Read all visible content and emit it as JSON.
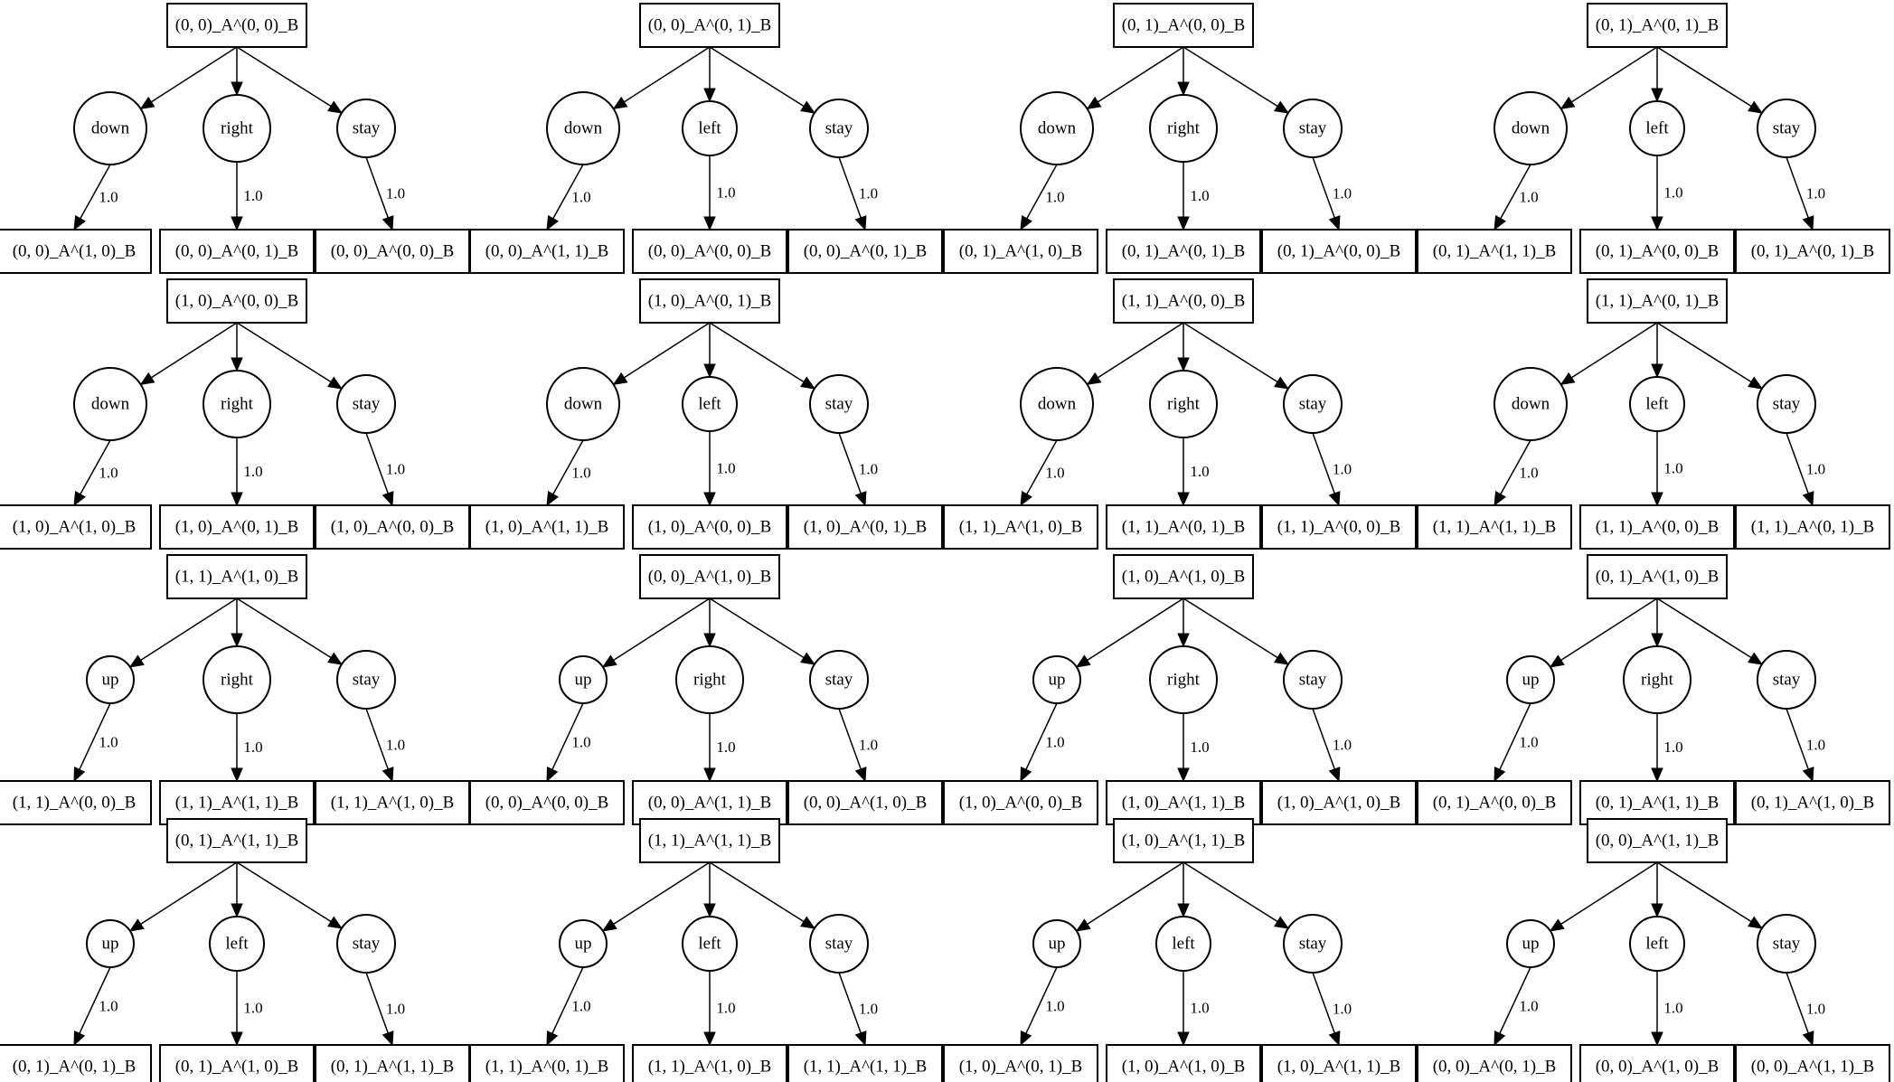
{
  "diagram": {
    "type": "transition-trees",
    "colors": {
      "stroke": "#000000",
      "fill": "#ffffff",
      "text": "#000000"
    },
    "trees": [
      {
        "root": "(0, 0)_A^(0, 0)_B",
        "branches": [
          {
            "action": "down",
            "prob": "1.0",
            "result": "(0, 0)_A^(1, 0)_B"
          },
          {
            "action": "right",
            "prob": "1.0",
            "result": "(0, 0)_A^(0, 1)_B"
          },
          {
            "action": "stay",
            "prob": "1.0",
            "result": "(0, 0)_A^(0, 0)_B"
          }
        ]
      },
      {
        "root": "(0, 0)_A^(0, 1)_B",
        "branches": [
          {
            "action": "down",
            "prob": "1.0",
            "result": "(0, 0)_A^(1, 1)_B"
          },
          {
            "action": "left",
            "prob": "1.0",
            "result": "(0, 0)_A^(0, 0)_B"
          },
          {
            "action": "stay",
            "prob": "1.0",
            "result": "(0, 0)_A^(0, 1)_B"
          }
        ]
      },
      {
        "root": "(0, 1)_A^(0, 0)_B",
        "branches": [
          {
            "action": "down",
            "prob": "1.0",
            "result": "(0, 1)_A^(1, 0)_B"
          },
          {
            "action": "right",
            "prob": "1.0",
            "result": "(0, 1)_A^(0, 1)_B"
          },
          {
            "action": "stay",
            "prob": "1.0",
            "result": "(0, 1)_A^(0, 0)_B"
          }
        ]
      },
      {
        "root": "(0, 1)_A^(0, 1)_B",
        "branches": [
          {
            "action": "down",
            "prob": "1.0",
            "result": "(0, 1)_A^(1, 1)_B"
          },
          {
            "action": "left",
            "prob": "1.0",
            "result": "(0, 1)_A^(0, 0)_B"
          },
          {
            "action": "stay",
            "prob": "1.0",
            "result": "(0, 1)_A^(0, 1)_B"
          }
        ]
      },
      {
        "root": "(1, 0)_A^(0, 0)_B",
        "branches": [
          {
            "action": "down",
            "prob": "1.0",
            "result": "(1, 0)_A^(1, 0)_B"
          },
          {
            "action": "right",
            "prob": "1.0",
            "result": "(1, 0)_A^(0, 1)_B"
          },
          {
            "action": "stay",
            "prob": "1.0",
            "result": "(1, 0)_A^(0, 0)_B"
          }
        ]
      },
      {
        "root": "(1, 0)_A^(0, 1)_B",
        "branches": [
          {
            "action": "down",
            "prob": "1.0",
            "result": "(1, 0)_A^(1, 1)_B"
          },
          {
            "action": "left",
            "prob": "1.0",
            "result": "(1, 0)_A^(0, 0)_B"
          },
          {
            "action": "stay",
            "prob": "1.0",
            "result": "(1, 0)_A^(0, 1)_B"
          }
        ]
      },
      {
        "root": "(1, 1)_A^(0, 0)_B",
        "branches": [
          {
            "action": "down",
            "prob": "1.0",
            "result": "(1, 1)_A^(1, 0)_B"
          },
          {
            "action": "right",
            "prob": "1.0",
            "result": "(1, 1)_A^(0, 1)_B"
          },
          {
            "action": "stay",
            "prob": "1.0",
            "result": "(1, 1)_A^(0, 0)_B"
          }
        ]
      },
      {
        "root": "(1, 1)_A^(0, 1)_B",
        "branches": [
          {
            "action": "down",
            "prob": "1.0",
            "result": "(1, 1)_A^(1, 1)_B"
          },
          {
            "action": "left",
            "prob": "1.0",
            "result": "(1, 1)_A^(0, 0)_B"
          },
          {
            "action": "stay",
            "prob": "1.0",
            "result": "(1, 1)_A^(0, 1)_B"
          }
        ]
      },
      {
        "root": "(1, 1)_A^(1, 0)_B",
        "branches": [
          {
            "action": "up",
            "prob": "1.0",
            "result": "(1, 1)_A^(0, 0)_B"
          },
          {
            "action": "right",
            "prob": "1.0",
            "result": "(1, 1)_A^(1, 1)_B"
          },
          {
            "action": "stay",
            "prob": "1.0",
            "result": "(1, 1)_A^(1, 0)_B"
          }
        ]
      },
      {
        "root": "(0, 0)_A^(1, 0)_B",
        "branches": [
          {
            "action": "up",
            "prob": "1.0",
            "result": "(0, 0)_A^(0, 0)_B"
          },
          {
            "action": "right",
            "prob": "1.0",
            "result": "(0, 0)_A^(1, 1)_B"
          },
          {
            "action": "stay",
            "prob": "1.0",
            "result": "(0, 0)_A^(1, 0)_B"
          }
        ]
      },
      {
        "root": "(1, 0)_A^(1, 0)_B",
        "branches": [
          {
            "action": "up",
            "prob": "1.0",
            "result": "(1, 0)_A^(0, 0)_B"
          },
          {
            "action": "right",
            "prob": "1.0",
            "result": "(1, 0)_A^(1, 1)_B"
          },
          {
            "action": "stay",
            "prob": "1.0",
            "result": "(1, 0)_A^(1, 0)_B"
          }
        ]
      },
      {
        "root": "(0, 1)_A^(1, 0)_B",
        "branches": [
          {
            "action": "up",
            "prob": "1.0",
            "result": "(0, 1)_A^(0, 0)_B"
          },
          {
            "action": "right",
            "prob": "1.0",
            "result": "(0, 1)_A^(1, 1)_B"
          },
          {
            "action": "stay",
            "prob": "1.0",
            "result": "(0, 1)_A^(1, 0)_B"
          }
        ]
      },
      {
        "root": "(0, 1)_A^(1, 1)_B",
        "branches": [
          {
            "action": "up",
            "prob": "1.0",
            "result": "(0, 1)_A^(0, 1)_B"
          },
          {
            "action": "left",
            "prob": "1.0",
            "result": "(0, 1)_A^(1, 0)_B"
          },
          {
            "action": "stay",
            "prob": "1.0",
            "result": "(0, 1)_A^(1, 1)_B"
          }
        ]
      },
      {
        "root": "(1, 1)_A^(1, 1)_B",
        "branches": [
          {
            "action": "up",
            "prob": "1.0",
            "result": "(1, 1)_A^(0, 1)_B"
          },
          {
            "action": "left",
            "prob": "1.0",
            "result": "(1, 1)_A^(1, 0)_B"
          },
          {
            "action": "stay",
            "prob": "1.0",
            "result": "(1, 1)_A^(1, 1)_B"
          }
        ]
      },
      {
        "root": "(1, 0)_A^(1, 1)_B",
        "branches": [
          {
            "action": "up",
            "prob": "1.0",
            "result": "(1, 0)_A^(0, 1)_B"
          },
          {
            "action": "left",
            "prob": "1.0",
            "result": "(1, 0)_A^(1, 0)_B"
          },
          {
            "action": "stay",
            "prob": "1.0",
            "result": "(1, 0)_A^(1, 1)_B"
          }
        ]
      },
      {
        "root": "(0, 0)_A^(1, 1)_B",
        "branches": [
          {
            "action": "up",
            "prob": "1.0",
            "result": "(0, 0)_A^(0, 1)_B"
          },
          {
            "action": "left",
            "prob": "1.0",
            "result": "(0, 0)_A^(1, 0)_B"
          },
          {
            "action": "stay",
            "prob": "1.0",
            "result": "(0, 0)_A^(1, 1)_B"
          }
        ]
      }
    ]
  }
}
